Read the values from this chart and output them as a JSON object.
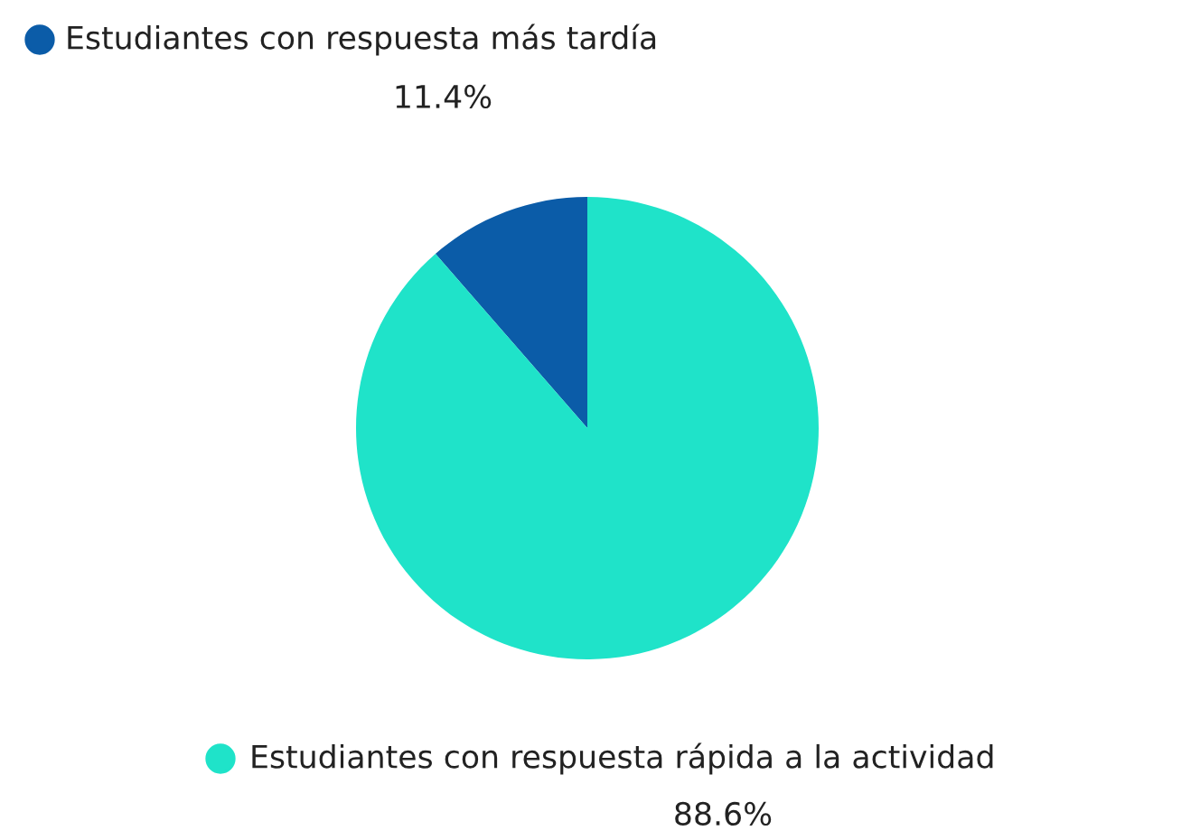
{
  "chart_data": {
    "type": "pie",
    "categories": [
      "Estudiantes con respuesta más tardía",
      "Estudiantes con respuesta rápida a la actividad"
    ],
    "values": [
      11.4,
      88.6
    ],
    "colors": [
      "#0b5ca8",
      "#1fe3c9"
    ],
    "value_labels": [
      "11.4%",
      "88.6%"
    ],
    "legend": "top left"
  }
}
